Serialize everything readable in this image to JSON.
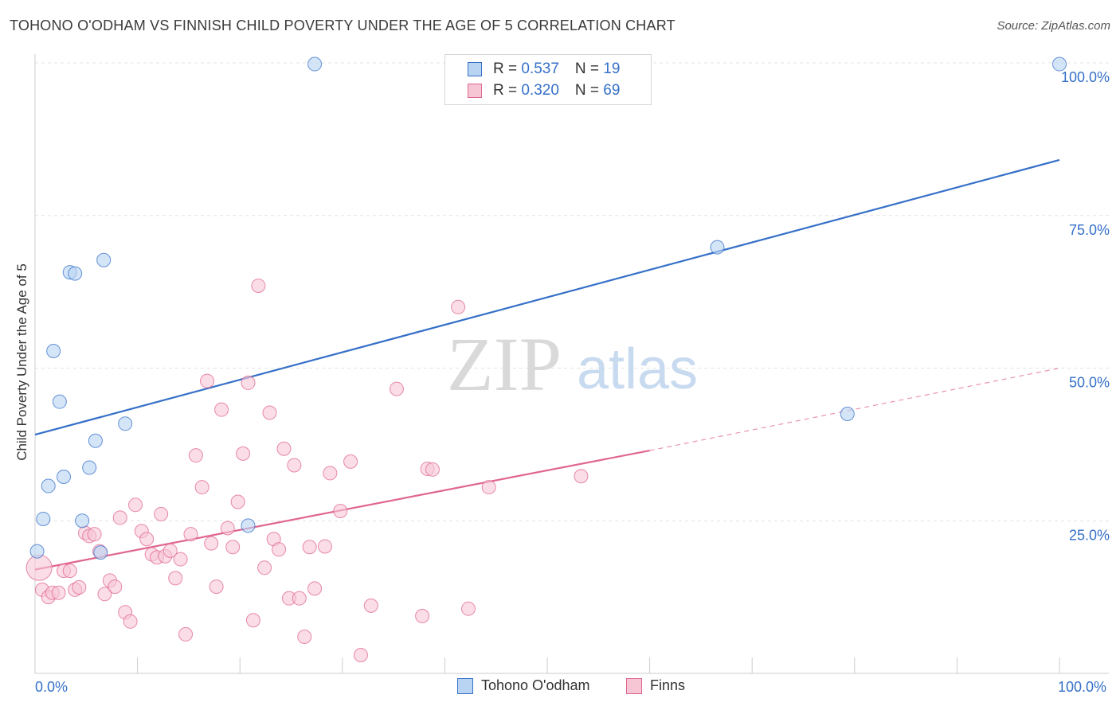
{
  "title": "TOHONO O'ODHAM VS FINNISH CHILD POVERTY UNDER THE AGE OF 5 CORRELATION CHART",
  "source": "Source: ZipAtlas.com",
  "watermark": {
    "zip": "ZIP",
    "atlas": "atlas"
  },
  "colors": {
    "blue": "#3570c8",
    "blue_fill": "#b9d3f3",
    "pink": "#e0668f",
    "pink_fill": "#f7c6d5",
    "grid": "#e3e3e3"
  },
  "legend_top": {
    "rows": [
      {
        "r_label": "R = ",
        "r_value": "0.537",
        "n_label": "N = ",
        "n_value": "19"
      },
      {
        "r_label": "R = ",
        "r_value": "0.320",
        "n_label": "N = ",
        "n_value": "69"
      }
    ]
  },
  "legend_bottom": {
    "series1": "Tohono O'odham",
    "series2": "Finns"
  },
  "chart_data": {
    "type": "scatter",
    "ylabel": "Child Poverty Under the Age of 5",
    "xlabel": "",
    "xlim": [
      0,
      100
    ],
    "ylim": [
      0,
      100
    ],
    "x_tick_labels": [
      "0.0%",
      "100.0%"
    ],
    "y_tick_labels": [
      {
        "value": 25,
        "label": "25.0%"
      },
      {
        "value": 50,
        "label": "50.0%"
      },
      {
        "value": 75,
        "label": "75.0%"
      },
      {
        "value": 100,
        "label": "100.0%"
      }
    ],
    "grid": true,
    "series": [
      {
        "name": "Tohono O'odham",
        "color": "#3570c8",
        "points": [
          [
            0.2,
            20.0
          ],
          [
            0.8,
            25.3
          ],
          [
            1.3,
            30.7
          ],
          [
            1.8,
            52.8
          ],
          [
            2.4,
            44.5
          ],
          [
            2.8,
            32.2
          ],
          [
            3.4,
            65.7
          ],
          [
            3.9,
            65.5
          ],
          [
            4.6,
            25.0
          ],
          [
            5.3,
            33.7
          ],
          [
            5.9,
            38.1
          ],
          [
            6.4,
            19.8
          ],
          [
            6.7,
            67.7
          ],
          [
            8.8,
            40.9
          ],
          [
            20.8,
            24.2
          ],
          [
            27.3,
            99.8
          ],
          [
            66.6,
            69.8
          ],
          [
            79.3,
            42.5
          ],
          [
            100.0,
            99.8
          ]
        ],
        "trend": {
          "x": [
            0,
            100
          ],
          "y": [
            39.1,
            84.1
          ],
          "style": "solid"
        }
      },
      {
        "name": "Finns",
        "color": "#e0668f",
        "points": [
          [
            0.4,
            17.3
          ],
          [
            0.7,
            13.7
          ],
          [
            1.3,
            12.5
          ],
          [
            1.7,
            13.2
          ],
          [
            2.3,
            13.2
          ],
          [
            2.8,
            16.8
          ],
          [
            3.4,
            16.8
          ],
          [
            3.9,
            13.7
          ],
          [
            4.3,
            14.1
          ],
          [
            4.9,
            23.0
          ],
          [
            5.3,
            22.5
          ],
          [
            5.8,
            22.8
          ],
          [
            6.3,
            20.0
          ],
          [
            6.8,
            13.0
          ],
          [
            7.3,
            15.2
          ],
          [
            7.8,
            14.2
          ],
          [
            8.3,
            25.5
          ],
          [
            8.8,
            10.0
          ],
          [
            9.3,
            8.5
          ],
          [
            9.8,
            27.6
          ],
          [
            10.4,
            23.3
          ],
          [
            10.9,
            22.0
          ],
          [
            11.4,
            19.5
          ],
          [
            11.9,
            19.0
          ],
          [
            12.3,
            26.1
          ],
          [
            12.7,
            19.2
          ],
          [
            13.2,
            20.1
          ],
          [
            13.7,
            15.6
          ],
          [
            14.2,
            18.7
          ],
          [
            14.7,
            6.4
          ],
          [
            15.2,
            22.8
          ],
          [
            15.7,
            35.7
          ],
          [
            16.3,
            30.5
          ],
          [
            16.8,
            47.9
          ],
          [
            17.2,
            21.3
          ],
          [
            17.7,
            14.2
          ],
          [
            18.2,
            43.2
          ],
          [
            18.8,
            23.8
          ],
          [
            19.3,
            20.7
          ],
          [
            19.8,
            28.1
          ],
          [
            20.3,
            36.0
          ],
          [
            20.8,
            47.6
          ],
          [
            21.3,
            8.7
          ],
          [
            21.8,
            63.5
          ],
          [
            22.4,
            17.3
          ],
          [
            22.9,
            42.7
          ],
          [
            23.3,
            22.0
          ],
          [
            23.8,
            20.3
          ],
          [
            24.3,
            36.8
          ],
          [
            24.8,
            12.3
          ],
          [
            25.3,
            34.1
          ],
          [
            25.8,
            12.3
          ],
          [
            26.3,
            6.0
          ],
          [
            26.8,
            20.7
          ],
          [
            27.3,
            13.9
          ],
          [
            28.3,
            20.8
          ],
          [
            28.8,
            32.8
          ],
          [
            29.8,
            26.6
          ],
          [
            30.8,
            34.7
          ],
          [
            31.8,
            3.0
          ],
          [
            32.8,
            11.1
          ],
          [
            35.3,
            46.6
          ],
          [
            37.8,
            9.4
          ],
          [
            38.3,
            33.5
          ],
          [
            38.8,
            33.4
          ],
          [
            41.3,
            60.0
          ],
          [
            42.3,
            10.6
          ],
          [
            44.3,
            30.5
          ],
          [
            53.3,
            32.3
          ]
        ],
        "trend": {
          "x": [
            0,
            60
          ],
          "y": [
            17.0,
            36.5
          ],
          "style": "solid"
        },
        "trend_extension": {
          "x": [
            60,
            100
          ],
          "y": [
            36.5,
            50.0
          ],
          "style": "dashed"
        }
      }
    ]
  }
}
